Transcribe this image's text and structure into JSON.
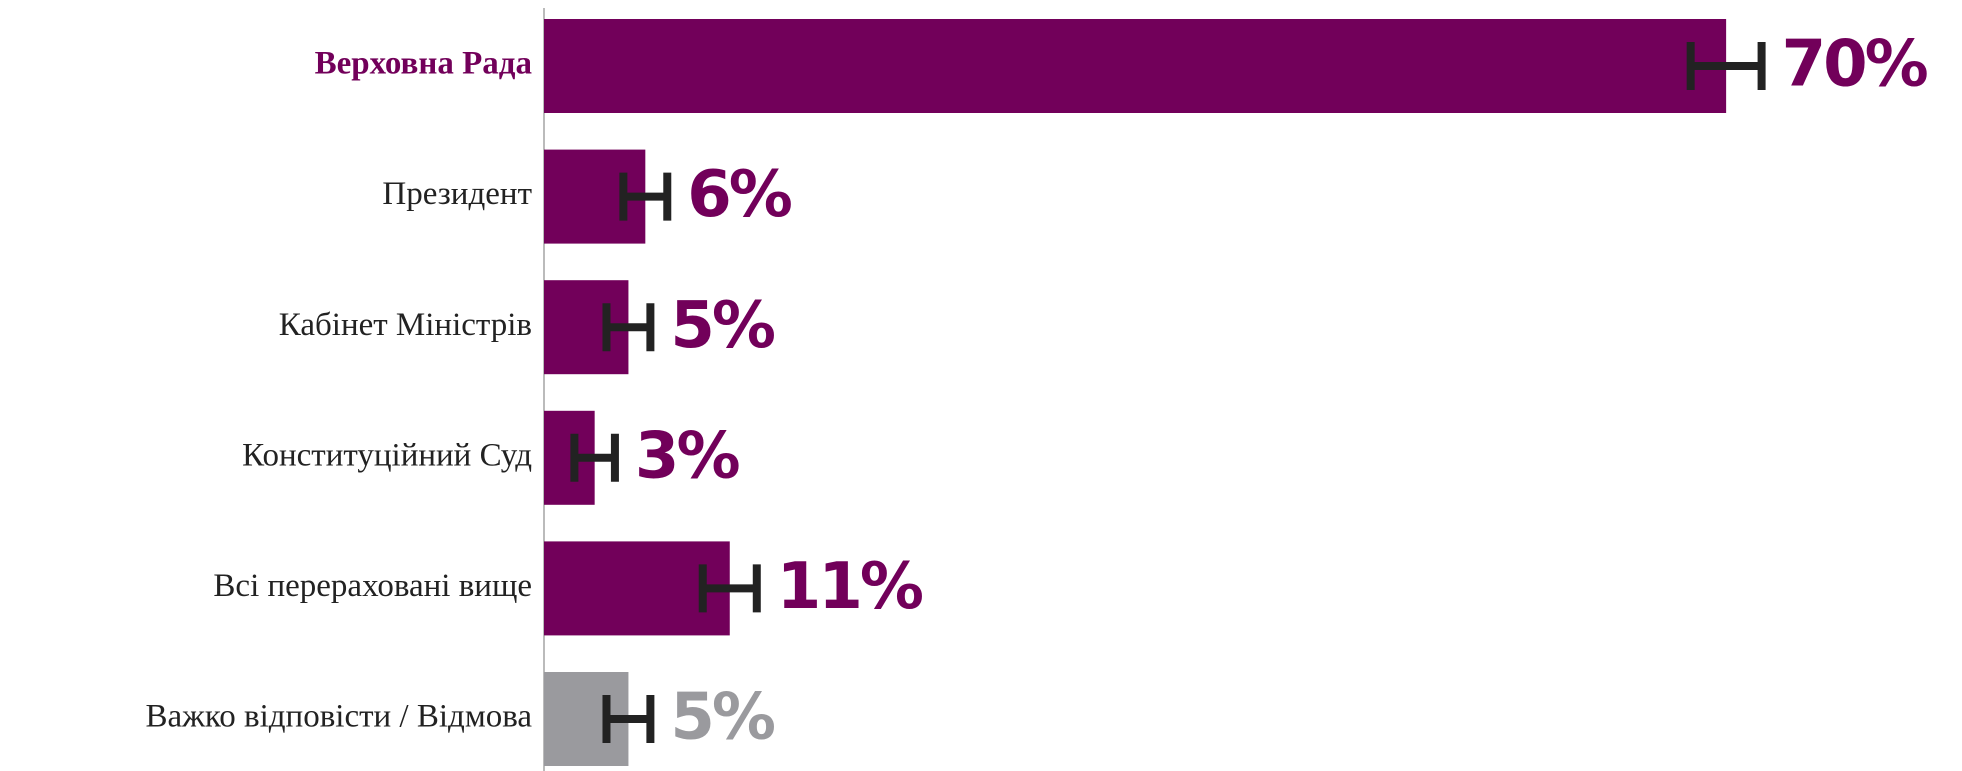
{
  "chart_data": {
    "type": "bar",
    "orientation": "horizontal",
    "categories": [
      "Верховна Рада",
      "Президент",
      "Кабінет Міністрів",
      "Конституційний Суд",
      "Всі перераховані вище",
      "Важко відповісти / Відмова"
    ],
    "values": [
      70,
      6,
      5,
      3,
      11,
      5
    ],
    "value_labels": [
      "70%",
      "6%",
      "5%",
      "3%",
      "11%",
      "5%"
    ],
    "errors": [
      2.1,
      1.3,
      1.3,
      1.2,
      1.6,
      1.3
    ],
    "colors": [
      "#72005a",
      "#72005a",
      "#72005a",
      "#72005a",
      "#72005a",
      "#9a9a9e"
    ],
    "error_color": "#222222",
    "xlim": [
      0,
      80
    ]
  }
}
